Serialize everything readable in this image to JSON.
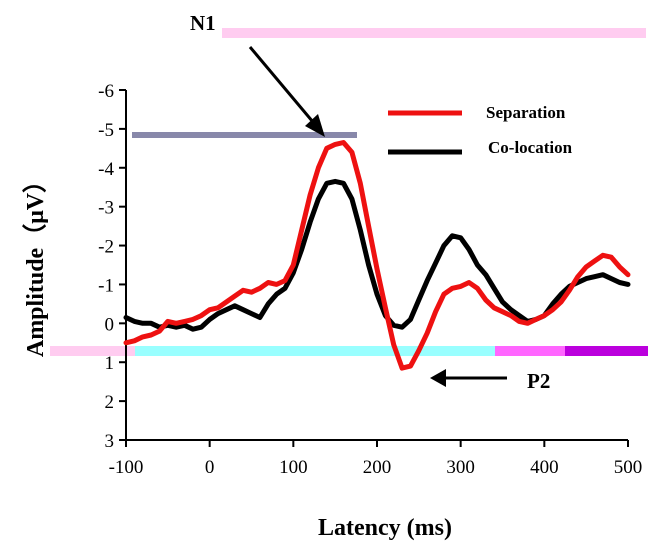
{
  "chart_data": {
    "type": "line",
    "xlabel": "Latency (ms)",
    "ylabel": "Amplitude（μV）",
    "xlim": [
      -100,
      500
    ],
    "ylim": [
      3,
      -6
    ],
    "y_inverted": true,
    "x_ticks": [
      "-100",
      "0",
      "100",
      "200",
      "300",
      "400",
      "500"
    ],
    "y_ticks": [
      "-6",
      "-5",
      "-4",
      "-3",
      "-2",
      "-1",
      "0",
      "1",
      "2",
      "3"
    ],
    "grid": false,
    "legend_position": "top-right",
    "series": [
      {
        "name": "Separation",
        "color": "#ee1111",
        "points": [
          [
            -100,
            0.5
          ],
          [
            -90,
            0.45
          ],
          [
            -80,
            0.35
          ],
          [
            -70,
            0.3
          ],
          [
            -60,
            0.2
          ],
          [
            -50,
            -0.05
          ],
          [
            -40,
            0.0
          ],
          [
            -30,
            -0.05
          ],
          [
            -20,
            -0.1
          ],
          [
            -10,
            -0.2
          ],
          [
            0,
            -0.35
          ],
          [
            10,
            -0.4
          ],
          [
            20,
            -0.55
          ],
          [
            30,
            -0.7
          ],
          [
            40,
            -0.85
          ],
          [
            50,
            -0.8
          ],
          [
            60,
            -0.9
          ],
          [
            70,
            -1.05
          ],
          [
            80,
            -1.0
          ],
          [
            90,
            -1.1
          ],
          [
            100,
            -1.5
          ],
          [
            110,
            -2.4
          ],
          [
            120,
            -3.3
          ],
          [
            130,
            -4.0
          ],
          [
            140,
            -4.5
          ],
          [
            150,
            -4.6
          ],
          [
            160,
            -4.65
          ],
          [
            170,
            -4.4
          ],
          [
            180,
            -3.6
          ],
          [
            190,
            -2.5
          ],
          [
            200,
            -1.4
          ],
          [
            210,
            -0.4
          ],
          [
            220,
            0.55
          ],
          [
            230,
            1.15
          ],
          [
            240,
            1.1
          ],
          [
            250,
            0.7
          ],
          [
            260,
            0.25
          ],
          [
            270,
            -0.3
          ],
          [
            280,
            -0.75
          ],
          [
            290,
            -0.9
          ],
          [
            300,
            -0.95
          ],
          [
            310,
            -1.05
          ],
          [
            320,
            -0.9
          ],
          [
            330,
            -0.6
          ],
          [
            340,
            -0.4
          ],
          [
            350,
            -0.3
          ],
          [
            360,
            -0.2
          ],
          [
            370,
            -0.05
          ],
          [
            380,
            0.0
          ],
          [
            390,
            -0.1
          ],
          [
            400,
            -0.2
          ],
          [
            410,
            -0.35
          ],
          [
            420,
            -0.55
          ],
          [
            430,
            -0.85
          ],
          [
            440,
            -1.2
          ],
          [
            450,
            -1.45
          ],
          [
            460,
            -1.6
          ],
          [
            470,
            -1.75
          ],
          [
            480,
            -1.7
          ],
          [
            490,
            -1.45
          ],
          [
            500,
            -1.25
          ]
        ]
      },
      {
        "name": "Co-location",
        "color": "#000000",
        "points": [
          [
            -100,
            -0.15
          ],
          [
            -90,
            -0.05
          ],
          [
            -80,
            0.0
          ],
          [
            -70,
            0.0
          ],
          [
            -60,
            0.1
          ],
          [
            -50,
            0.05
          ],
          [
            -40,
            0.1
          ],
          [
            -30,
            0.05
          ],
          [
            -20,
            0.15
          ],
          [
            -10,
            0.1
          ],
          [
            0,
            -0.1
          ],
          [
            10,
            -0.25
          ],
          [
            20,
            -0.35
          ],
          [
            30,
            -0.45
          ],
          [
            40,
            -0.35
          ],
          [
            50,
            -0.25
          ],
          [
            60,
            -0.15
          ],
          [
            70,
            -0.5
          ],
          [
            80,
            -0.75
          ],
          [
            90,
            -0.9
          ],
          [
            100,
            -1.3
          ],
          [
            110,
            -1.9
          ],
          [
            120,
            -2.6
          ],
          [
            130,
            -3.2
          ],
          [
            140,
            -3.6
          ],
          [
            150,
            -3.65
          ],
          [
            160,
            -3.6
          ],
          [
            170,
            -3.2
          ],
          [
            180,
            -2.4
          ],
          [
            190,
            -1.5
          ],
          [
            200,
            -0.75
          ],
          [
            210,
            -0.2
          ],
          [
            220,
            0.05
          ],
          [
            230,
            0.1
          ],
          [
            240,
            -0.1
          ],
          [
            250,
            -0.6
          ],
          [
            260,
            -1.1
          ],
          [
            270,
            -1.55
          ],
          [
            280,
            -2.0
          ],
          [
            290,
            -2.25
          ],
          [
            300,
            -2.2
          ],
          [
            310,
            -1.9
          ],
          [
            320,
            -1.5
          ],
          [
            330,
            -1.25
          ],
          [
            340,
            -0.9
          ],
          [
            350,
            -0.55
          ],
          [
            360,
            -0.35
          ],
          [
            370,
            -0.2
          ],
          [
            380,
            -0.05
          ],
          [
            390,
            -0.1
          ],
          [
            400,
            -0.2
          ],
          [
            410,
            -0.5
          ],
          [
            420,
            -0.75
          ],
          [
            430,
            -0.95
          ],
          [
            440,
            -1.05
          ],
          [
            450,
            -1.15
          ],
          [
            460,
            -1.2
          ],
          [
            470,
            -1.25
          ],
          [
            480,
            -1.15
          ],
          [
            490,
            -1.05
          ],
          [
            500,
            -1.0
          ]
        ]
      }
    ],
    "annotations": [
      {
        "label": "N1",
        "points_to": [
          145,
          -4.6
        ]
      },
      {
        "label": "P2",
        "points_to": [
          235,
          1.2
        ]
      }
    ]
  },
  "artifact_colors": {
    "pink": "#ffccf0",
    "cyan": "#99ffff",
    "magenta": "#ff66ff",
    "purple": "#bb00dd",
    "gray": "#8888aa"
  }
}
